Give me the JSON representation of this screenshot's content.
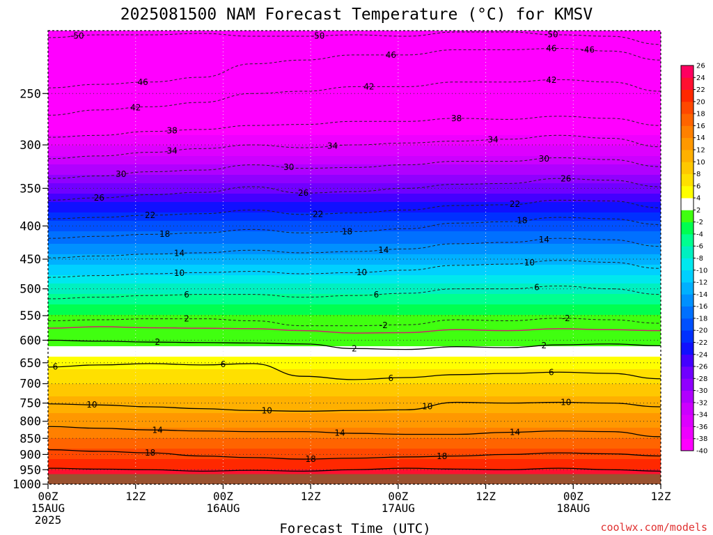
{
  "title": "2025081500 NAM Forecast Temperature (°C) for KMSV",
  "credit": "coolwx.com/models",
  "colors": {
    "ground": "#9a5230",
    "freezing_line": "#d0206a",
    "contour_dashed": "#202020",
    "contour_solid": "#000000"
  },
  "chart_data": {
    "type": "heatmap",
    "title": "2025081500 NAM Forecast Temperature (°C) for KMSV",
    "xlabel": "Forecast Time (UTC)",
    "ylabel": "",
    "x_ticks": [
      {
        "h": 0,
        "top": "00Z",
        "bottom": "15AUG",
        "year": "2025"
      },
      {
        "h": 12,
        "top": "12Z",
        "bottom": "",
        "year": ""
      },
      {
        "h": 24,
        "top": "00Z",
        "bottom": "16AUG",
        "year": ""
      },
      {
        "h": 36,
        "top": "12Z",
        "bottom": "",
        "year": ""
      },
      {
        "h": 48,
        "top": "00Z",
        "bottom": "17AUG",
        "year": ""
      },
      {
        "h": 60,
        "top": "12Z",
        "bottom": "",
        "year": ""
      },
      {
        "h": 72,
        "top": "00Z",
        "bottom": "18AUG",
        "year": ""
      },
      {
        "h": 84,
        "top": "12Z",
        "bottom": "",
        "year": ""
      }
    ],
    "xlim_hours": [
      0,
      84
    ],
    "y_axis": "pressure (hPa), log scale, decreasing upward",
    "ylim": [
      1000,
      200
    ],
    "y_ticks": [
      250,
      300,
      350,
      400,
      450,
      500,
      550,
      600,
      650,
      700,
      750,
      800,
      850,
      900,
      950,
      1000
    ],
    "ground_level_hPa": 965,
    "colorbar": {
      "levels": [
        -40,
        -38,
        -36,
        -34,
        -32,
        -30,
        -28,
        -26,
        -24,
        -22,
        -20,
        -18,
        -16,
        -14,
        -12,
        -10,
        -8,
        -6,
        -4,
        -2,
        2,
        4,
        6,
        8,
        10,
        12,
        14,
        16,
        18,
        20,
        22,
        24,
        26
      ],
      "colors": [
        "#ff00ff",
        "#ee00ff",
        "#dd00ff",
        "#cc00ff",
        "#b000ff",
        "#9000ff",
        "#7000ff",
        "#4400ff",
        "#1010ff",
        "#0030ff",
        "#0050ff",
        "#0070ff",
        "#0090ff",
        "#00b0ff",
        "#00d0ff",
        "#00e8ee",
        "#00f0c0",
        "#00ff90",
        "#00ff50",
        "#40ff10",
        "#ffffff",
        "#ffff00",
        "#ffe000",
        "#ffc800",
        "#ffb000",
        "#ff9800",
        "#ff8000",
        "#ff6400",
        "#ff4800",
        "#ff2800",
        "#ff1030",
        "#ff0060"
      ]
    },
    "temperature_profile": [
      {
        "p": 200,
        "t": -54
      },
      {
        "p": 250,
        "t": -46
      },
      {
        "p": 300,
        "t": -36
      },
      {
        "p": 350,
        "t": -27
      },
      {
        "p": 400,
        "t": -19
      },
      {
        "p": 450,
        "t": -13
      },
      {
        "p": 500,
        "t": -7
      },
      {
        "p": 550,
        "t": -2
      },
      {
        "p": 600,
        "t": 1
      },
      {
        "p": 650,
        "t": 5
      },
      {
        "p": 700,
        "t": 8
      },
      {
        "p": 750,
        "t": 11
      },
      {
        "p": 800,
        "t": 13
      },
      {
        "p": 850,
        "t": 16
      },
      {
        "p": 900,
        "t": 19
      },
      {
        "p": 950,
        "t": 22
      },
      {
        "p": 965,
        "t": 23
      }
    ],
    "contours": [
      {
        "t": -50,
        "p": [
          205,
          203,
          203,
          202,
          204,
          204,
          203,
          204,
          201,
          201,
          203,
          204,
          210
        ],
        "labels": [
          {
            "h": 4,
            "text": "-50"
          },
          {
            "h": 37,
            "text": "-50"
          },
          {
            "h": 69,
            "text": "-50"
          }
        ]
      },
      {
        "t": -46,
        "p": [
          245,
          242,
          240,
          236,
          225,
          222,
          218,
          218,
          214,
          214,
          213,
          215,
          222
        ],
        "labels": [
          {
            "h": 13,
            "text": "46"
          },
          {
            "h": 47,
            "text": "46"
          },
          {
            "h": 69,
            "text": "46"
          },
          {
            "h": 74,
            "text": "-46"
          }
        ]
      },
      {
        "t": -42,
        "p": [
          270,
          265,
          262,
          258,
          250,
          248,
          244,
          244,
          240,
          240,
          238,
          240,
          248
        ],
        "labels": [
          {
            "h": 12,
            "text": "42"
          },
          {
            "h": 44,
            "text": "42"
          },
          {
            "h": 69,
            "text": "42"
          }
        ]
      },
      {
        "t": -38,
        "p": [
          292,
          290,
          286,
          284,
          280,
          279,
          276,
          276,
          273,
          274,
          271,
          273,
          280
        ],
        "labels": [
          {
            "h": 17,
            "text": "38"
          },
          {
            "h": 56,
            "text": "38"
          }
        ]
      },
      {
        "t": -34,
        "p": [
          315,
          312,
          308,
          304,
          300,
          303,
          300,
          298,
          296,
          294,
          290,
          293,
          302
        ],
        "labels": [
          {
            "h": 17,
            "text": "34"
          },
          {
            "h": 39,
            "text": "34"
          },
          {
            "h": 61,
            "text": "34"
          }
        ]
      },
      {
        "t": -30,
        "p": [
          338,
          335,
          330,
          328,
          322,
          326,
          325,
          322,
          318,
          318,
          314,
          316,
          324
        ],
        "labels": [
          {
            "h": 10,
            "text": "30"
          },
          {
            "h": 33,
            "text": "30"
          },
          {
            "h": 68,
            "text": "30"
          }
        ]
      },
      {
        "t": -26,
        "p": [
          365,
          362,
          358,
          355,
          348,
          356,
          354,
          350,
          345,
          344,
          338,
          340,
          348
        ],
        "labels": [
          {
            "h": 7,
            "text": "26"
          },
          {
            "h": 35,
            "text": "26"
          },
          {
            "h": 71,
            "text": "26"
          }
        ]
      },
      {
        "t": -22,
        "p": [
          390,
          388,
          385,
          383,
          378,
          384,
          382,
          378,
          372,
          371,
          365,
          366,
          375
        ],
        "labels": [
          {
            "h": 14,
            "text": "22"
          },
          {
            "h": 37,
            "text": "22"
          },
          {
            "h": 64,
            "text": "22"
          }
        ]
      },
      {
        "t": -18,
        "p": [
          418,
          415,
          412,
          410,
          405,
          410,
          408,
          404,
          396,
          394,
          388,
          390,
          398
        ],
        "labels": [
          {
            "h": 16,
            "text": "18"
          },
          {
            "h": 41,
            "text": "18"
          },
          {
            "h": 65,
            "text": "18"
          }
        ]
      },
      {
        "t": -14,
        "p": [
          448,
          445,
          442,
          440,
          436,
          440,
          438,
          434,
          426,
          424,
          418,
          420,
          430
        ],
        "labels": [
          {
            "h": 18,
            "text": "14"
          },
          {
            "h": 46,
            "text": "14"
          },
          {
            "h": 68,
            "text": "14"
          }
        ]
      },
      {
        "t": -10,
        "p": [
          480,
          477,
          474,
          472,
          470,
          474,
          472,
          468,
          460,
          458,
          452,
          455,
          465
        ],
        "labels": [
          {
            "h": 18,
            "text": "10"
          },
          {
            "h": 43,
            "text": "10"
          },
          {
            "h": 66,
            "text": "10"
          }
        ]
      },
      {
        "t": -6,
        "p": [
          518,
          515,
          512,
          510,
          510,
          515,
          512,
          508,
          500,
          500,
          495,
          500,
          510
        ],
        "labels": [
          {
            "h": 19,
            "text": "6"
          },
          {
            "h": 45,
            "text": "6"
          },
          {
            "h": 67,
            "text": "6"
          }
        ]
      },
      {
        "t": -2,
        "p": [
          560,
          558,
          556,
          556,
          560,
          570,
          570,
          568,
          558,
          560,
          555,
          558,
          565
        ],
        "labels": [
          {
            "h": 19,
            "text": "2"
          },
          {
            "h": 46,
            "text": "-2"
          },
          {
            "h": 71,
            "text": "-2"
          }
        ]
      },
      {
        "t": 2,
        "p": [
          600,
          602,
          604,
          605,
          606,
          608,
          618,
          620,
          614,
          616,
          610,
          608,
          612
        ],
        "labels": [
          {
            "h": 15,
            "text": "2"
          },
          {
            "h": 42,
            "text": "2"
          },
          {
            "h": 68,
            "text": "2"
          }
        ]
      },
      {
        "t": 6,
        "p": [
          660,
          655,
          652,
          655,
          652,
          682,
          690,
          685,
          678,
          675,
          672,
          675,
          688
        ],
        "labels": [
          {
            "h": 1,
            "text": "6"
          },
          {
            "h": 24,
            "text": "6"
          },
          {
            "h": 47,
            "text": "6"
          },
          {
            "h": 69,
            "text": "6"
          }
        ]
      },
      {
        "t": 10,
        "p": [
          752,
          755,
          760,
          765,
          770,
          772,
          770,
          768,
          748,
          750,
          748,
          750,
          760
        ],
        "labels": [
          {
            "h": 6,
            "text": "10"
          },
          {
            "h": 30,
            "text": "10"
          },
          {
            "h": 52,
            "text": "10"
          },
          {
            "h": 71,
            "text": "10"
          }
        ]
      },
      {
        "t": 14,
        "p": [
          815,
          820,
          825,
          828,
          830,
          830,
          835,
          838,
          838,
          832,
          828,
          830,
          845
        ],
        "labels": [
          {
            "h": 15,
            "text": "14"
          },
          {
            "h": 40,
            "text": "14"
          },
          {
            "h": 64,
            "text": "14"
          }
        ]
      },
      {
        "t": 18,
        "p": [
          885,
          890,
          895,
          905,
          910,
          915,
          912,
          908,
          905,
          900,
          895,
          898,
          905
        ],
        "labels": [
          {
            "h": 14,
            "text": "18"
          },
          {
            "h": 36,
            "text": "18"
          },
          {
            "h": 54,
            "text": "18"
          }
        ]
      },
      {
        "t": 22,
        "p": [
          945,
          948,
          950,
          955,
          952,
          955,
          950,
          945,
          948,
          950,
          945,
          950,
          955
        ],
        "labels": []
      }
    ],
    "freezing_line_p": [
      575,
      572,
      574,
      575,
      576,
      580,
      585,
      584,
      578,
      580,
      576,
      578,
      580
    ],
    "contour_hours": [
      0,
      7,
      14,
      21,
      28,
      35,
      42,
      49,
      56,
      63,
      70,
      77,
      84
    ],
    "grid": true
  }
}
